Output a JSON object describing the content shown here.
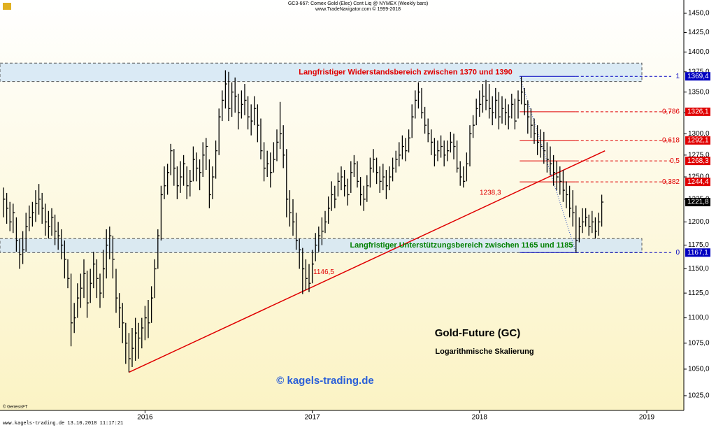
{
  "chart_data": {
    "type": "ohlc",
    "header": "GC3-667:  Comex Gold (Elec) Cont Liq @ NYMEX  (Weekly bars)",
    "subheader": "www.TradeNavigator.com © 1999-2018",
    "title": "Gold-Future (GC)",
    "subtitle": "Logarithmische Skalierung",
    "watermark": "© kagels-trading.de",
    "source": "© GenesisFT",
    "footer": "www.kagels-trading.de   13.10.2018 11:17:21",
    "log_scale": true,
    "color": "#000000",
    "ylim": [
      1011.4,
      1467.6
    ],
    "yticks": [
      {
        "value": 1025,
        "label": "1025,0"
      },
      {
        "value": 1050,
        "label": "1050,0"
      },
      {
        "value": 1075,
        "label": "1075,0"
      },
      {
        "value": 1100,
        "label": "1100,0"
      },
      {
        "value": 1125,
        "label": "1125,0"
      },
      {
        "value": 1150,
        "label": "1150,0"
      },
      {
        "value": 1175,
        "label": "1175,0"
      },
      {
        "value": 1200,
        "label": "1200,0"
      },
      {
        "value": 1225,
        "label": "1225,0"
      },
      {
        "value": 1250,
        "label": "1250,0"
      },
      {
        "value": 1275,
        "label": "1275,0"
      },
      {
        "value": 1300,
        "label": "1300,0"
      },
      {
        "value": 1325,
        "label": "1325,0"
      },
      {
        "value": 1350,
        "label": "1350,0"
      },
      {
        "value": 1375,
        "label": "1375,0"
      },
      {
        "value": 1400,
        "label": "1400,0"
      },
      {
        "value": 1425,
        "label": "1425,0"
      },
      {
        "value": 1450,
        "label": "1450,0"
      }
    ],
    "categories": [
      null,
      null,
      null,
      null,
      null,
      null,
      null,
      null,
      null,
      null,
      null,
      null,
      null,
      null,
      null,
      null,
      null,
      null,
      null,
      null,
      null,
      null,
      null,
      null,
      null,
      null,
      null,
      null,
      null,
      null,
      null,
      null,
      null,
      null,
      null,
      null,
      null,
      null,
      null,
      null,
      null,
      null,
      null,
      null,
      "2016",
      null,
      null,
      null,
      null,
      null,
      null,
      null,
      null,
      null,
      null,
      null,
      null,
      null,
      null,
      null,
      null,
      null,
      null,
      null,
      null,
      null,
      null,
      null,
      null,
      null,
      null,
      null,
      null,
      null,
      null,
      null,
      null,
      null,
      null,
      null,
      null,
      null,
      null,
      null,
      null,
      null,
      null,
      null,
      null,
      null,
      null,
      null,
      null,
      null,
      null,
      null,
      "2017",
      null,
      null,
      null,
      null,
      null,
      null,
      null,
      null,
      null,
      null,
      null,
      null,
      null,
      null,
      null,
      null,
      null,
      null,
      null,
      null,
      null,
      null,
      null,
      null,
      null,
      null,
      null,
      null,
      null,
      null,
      null,
      null,
      null,
      null,
      null,
      null,
      null,
      null,
      null,
      null,
      null,
      null,
      null,
      null,
      null,
      null,
      null,
      null,
      null,
      null,
      null,
      "2018",
      null,
      null,
      null,
      null,
      null,
      null,
      null,
      null,
      null,
      null,
      null,
      null,
      null,
      null,
      null,
      null,
      null,
      null,
      null,
      null,
      null,
      null,
      null,
      null,
      null,
      null,
      null,
      null,
      null,
      null,
      null,
      null,
      null,
      null,
      null,
      null,
      null,
      null,
      null,
      null,
      null,
      null,
      null,
      null,
      null,
      null,
      null,
      null,
      null,
      null,
      null,
      "2019",
      null,
      null,
      null,
      null,
      null,
      null,
      null,
      null,
      null
    ],
    "high": [
      1238,
      1232,
      1222,
      1220,
      1205,
      1182,
      1190,
      1210,
      1218,
      1222,
      1235,
      1242,
      1232,
      1220,
      1212,
      1215,
      1208,
      1200,
      1192,
      1180,
      1160,
      1145,
      1115,
      1135,
      1145,
      1160,
      1148,
      1150,
      1168,
      1160,
      1145,
      1170,
      1192,
      1195,
      1185,
      1150,
      1125,
      1115,
      1095,
      1085,
      1090,
      1100,
      1095,
      1100,
      1112,
      1118,
      1132,
      1160,
      1192,
      1240,
      1262,
      1265,
      1288,
      1282,
      1262,
      1268,
      1275,
      1262,
      1258,
      1285,
      1278,
      1270,
      1290,
      1295,
      1270,
      1262,
      1292,
      1330,
      1352,
      1377,
      1375,
      1362,
      1368,
      1348,
      1352,
      1360,
      1345,
      1335,
      1345,
      1335,
      1318,
      1290,
      1280,
      1278,
      1290,
      1305,
      1338,
      1310,
      1282,
      1235,
      1225,
      1210,
      1182,
      1172,
      1160,
      1155,
      1170,
      1188,
      1195,
      1205,
      1212,
      1228,
      1245,
      1240,
      1255,
      1262,
      1258,
      1248,
      1268,
      1275,
      1268,
      1250,
      1240,
      1252,
      1272,
      1282,
      1272,
      1262,
      1265,
      1258,
      1262,
      1272,
      1280,
      1290,
      1298,
      1295,
      1305,
      1335,
      1352,
      1362,
      1355,
      1332,
      1318,
      1305,
      1295,
      1292,
      1298,
      1292,
      1292,
      1302,
      1300,
      1292,
      1268,
      1262,
      1278,
      1310,
      1322,
      1342,
      1352,
      1360,
      1365,
      1360,
      1345,
      1355,
      1350,
      1345,
      1342,
      1335,
      1348,
      1342,
      1352,
      1369,
      1355,
      1340,
      1330,
      1318,
      1310,
      1305,
      1302,
      1290,
      1285,
      1275,
      1268,
      1262,
      1258,
      1245,
      1240,
      1235,
      1218,
      1205,
      1215,
      1215,
      1208,
      1212,
      1205,
      1210,
      1230,
      null,
      null,
      null,
      null,
      null,
      null,
      null,
      null,
      null,
      null,
      null,
      null,
      null,
      null,
      null,
      null,
      null,
      null,
      null,
      null,
      null,
      null,
      null
    ],
    "low": [
      1205,
      1198,
      1190,
      1188,
      1168,
      1150,
      1155,
      1168,
      1190,
      1195,
      1200,
      1208,
      1198,
      1185,
      1182,
      1185,
      1175,
      1170,
      1160,
      1140,
      1130,
      1072,
      1085,
      1100,
      1110,
      1120,
      1100,
      1115,
      1130,
      1120,
      1110,
      1120,
      1140,
      1160,
      1140,
      1105,
      1090,
      1075,
      1055,
      1047,
      1052,
      1058,
      1060,
      1070,
      1078,
      1080,
      1095,
      1120,
      1150,
      1180,
      1225,
      1230,
      1252,
      1240,
      1225,
      1232,
      1240,
      1225,
      1228,
      1245,
      1245,
      1235,
      1250,
      1258,
      1215,
      1225,
      1248,
      1275,
      1315,
      1330,
      1315,
      1320,
      1325,
      1305,
      1318,
      1322,
      1305,
      1298,
      1310,
      1290,
      1270,
      1245,
      1250,
      1238,
      1255,
      1268,
      1282,
      1260,
      1205,
      1195,
      1185,
      1170,
      1150,
      1124,
      1128,
      1126,
      1135,
      1158,
      1168,
      1175,
      1188,
      1198,
      1212,
      1215,
      1228,
      1235,
      1228,
      1218,
      1232,
      1250,
      1238,
      1218,
      1212,
      1222,
      1238,
      1255,
      1242,
      1232,
      1235,
      1225,
      1235,
      1245,
      1255,
      1262,
      1270,
      1268,
      1278,
      1295,
      1318,
      1330,
      1318,
      1300,
      1290,
      1275,
      1262,
      1268,
      1272,
      1262,
      1268,
      1278,
      1270,
      1255,
      1240,
      1238,
      1245,
      1262,
      1295,
      1310,
      1320,
      1325,
      1328,
      1318,
      1310,
      1318,
      1305,
      1312,
      1310,
      1305,
      1318,
      1305,
      1318,
      1335,
      1322,
      1300,
      1295,
      1288,
      1275,
      1272,
      1265,
      1255,
      1252,
      1240,
      1235,
      1230,
      1222,
      1215,
      1205,
      1195,
      1167,
      1178,
      1188,
      1195,
      1185,
      1188,
      1182,
      1185,
      1195,
      null,
      null,
      null,
      null,
      null,
      null,
      null,
      null,
      null,
      null,
      null,
      null,
      null,
      null,
      null,
      null,
      null,
      null,
      null,
      null,
      null,
      null,
      null
    ],
    "close": [
      1225,
      1215,
      1200,
      1210,
      1180,
      1165,
      1170,
      1195,
      1205,
      1210,
      1220,
      1225,
      1215,
      1200,
      1195,
      1205,
      1190,
      1185,
      1175,
      1160,
      1140,
      1095,
      1100,
      1120,
      1130,
      1145,
      1115,
      1135,
      1155,
      1140,
      1125,
      1150,
      1175,
      1185,
      1160,
      1120,
      1110,
      1095,
      1075,
      1060,
      1070,
      1085,
      1080,
      1090,
      1100,
      1095,
      1120,
      1150,
      1185,
      1230,
      1240,
      1255,
      1280,
      1260,
      1240,
      1250,
      1265,
      1240,
      1245,
      1270,
      1260,
      1255,
      1275,
      1285,
      1230,
      1250,
      1280,
      1320,
      1340,
      1360,
      1330,
      1350,
      1345,
      1325,
      1335,
      1340,
      1320,
      1315,
      1330,
      1310,
      1280,
      1260,
      1265,
      1255,
      1270,
      1290,
      1300,
      1275,
      1225,
      1210,
      1200,
      1180,
      1170,
      1150,
      1140,
      1135,
      1155,
      1175,
      1185,
      1190,
      1200,
      1215,
      1230,
      1225,
      1245,
      1250,
      1240,
      1230,
      1255,
      1265,
      1245,
      1230,
      1225,
      1240,
      1260,
      1270,
      1255,
      1245,
      1250,
      1240,
      1250,
      1260,
      1270,
      1275,
      1285,
      1280,
      1295,
      1320,
      1340,
      1350,
      1325,
      1310,
      1300,
      1290,
      1275,
      1280,
      1285,
      1275,
      1280,
      1290,
      1285,
      1260,
      1250,
      1245,
      1265,
      1300,
      1310,
      1330,
      1335,
      1345,
      1340,
      1330,
      1325,
      1340,
      1320,
      1330,
      1325,
      1320,
      1335,
      1315,
      1340,
      1350,
      1335,
      1320,
      1310,
      1300,
      1290,
      1285,
      1280,
      1270,
      1265,
      1255,
      1250,
      1245,
      1235,
      1230,
      1215,
      1210,
      1180,
      1195,
      1200,
      1205,
      1195,
      1200,
      1190,
      1200,
      1221.8,
      null,
      null,
      null,
      null,
      null,
      null,
      null,
      null,
      null,
      null,
      null,
      null,
      null,
      null,
      null,
      null,
      null,
      null,
      null,
      null,
      null,
      null,
      null
    ],
    "last_price": {
      "value": 1221.8,
      "label": "1221,8"
    },
    "zones": [
      {
        "text": "Langfristiger Widerstandsbereich zwischen 1370 und 1390",
        "range": [
          1363,
          1386
        ],
        "color": "#e00000"
      },
      {
        "text": "Langfristiger Unterstützungsbereich zwischen 1165  und 1185",
        "range": [
          1167,
          1182
        ],
        "color": "#008000"
      }
    ],
    "fib_levels": [
      {
        "ratio": "1",
        "price": {
          "value": 1369.4,
          "label": "1369,4"
        },
        "color": "#0000c0"
      },
      {
        "ratio": "0,786",
        "price": {
          "value": 1326.1,
          "label": "1326,1"
        },
        "color": "#e00000"
      },
      {
        "ratio": "0,618",
        "price": {
          "value": 1292.1,
          "label": "1292,1"
        },
        "color": "#e00000"
      },
      {
        "ratio": "0,5",
        "price": {
          "value": 1268.3,
          "label": "1268,3"
        },
        "color": "#e00000"
      },
      {
        "ratio": "0,382",
        "price": {
          "value": 1244.4,
          "label": "1244,4"
        },
        "color": "#e00000"
      },
      {
        "ratio": "0",
        "price": {
          "value": 1167.1,
          "label": "1167,1"
        },
        "color": "#0000c0"
      }
    ],
    "trendline": {
      "start": 1047,
      "end": 1280,
      "color": "#e00000"
    },
    "annotations": [
      {
        "text": "1238,3",
        "value": 1238.3
      },
      {
        "text": "1146,5",
        "value": 1146.5
      }
    ]
  }
}
